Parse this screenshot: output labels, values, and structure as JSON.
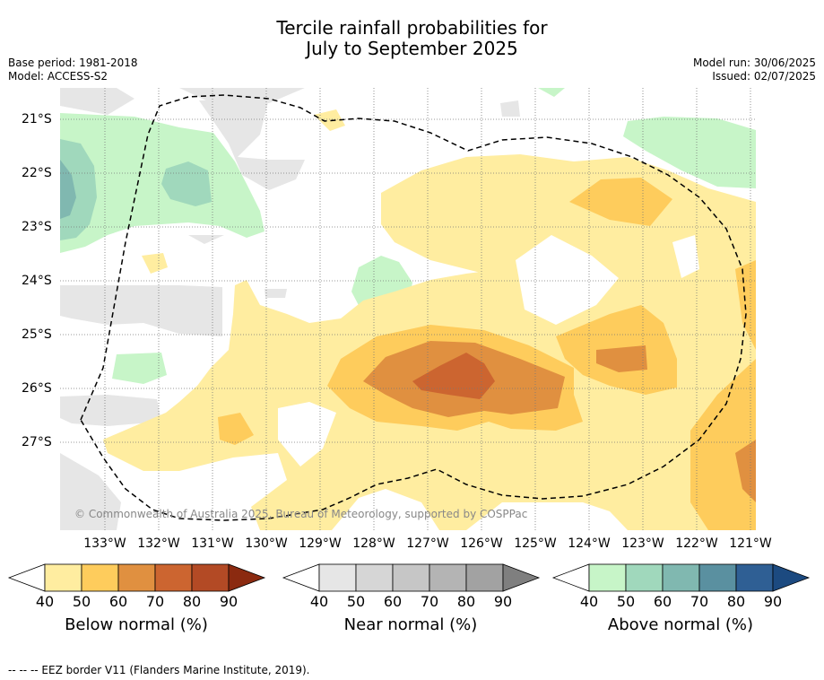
{
  "title": {
    "line1": "Tercile rainfall probabilities for",
    "line2": "July to September 2025"
  },
  "meta_left": {
    "base_period": "Base period: 1981-2018",
    "model": "Model: ACCESS-S2"
  },
  "meta_right": {
    "model_run": "Model run: 30/06/2025",
    "issued": "Issued: 02/07/2025"
  },
  "map": {
    "x_ticks": [
      "133°W",
      "132°W",
      "131°W",
      "130°W",
      "129°W",
      "128°W",
      "127°W",
      "126°W",
      "125°W",
      "124°W",
      "123°W",
      "122°W",
      "121°W"
    ],
    "y_ticks": [
      "21°S",
      "22°S",
      "23°S",
      "24°S",
      "25°S",
      "26°S",
      "27°S"
    ],
    "copyright": "© Commonwealth of Australia 2025, Bureau of Meteorology, supported by COSPPac"
  },
  "colorbars": [
    {
      "label": "Below normal (%)",
      "ticks": [
        "40",
        "50",
        "60",
        "70",
        "80",
        "90"
      ],
      "colors": [
        "#ffeda0",
        "#fecc5c",
        "#e09040",
        "#cc6530",
        "#b34a25",
        "#8b2a10"
      ]
    },
    {
      "label": "Near normal (%)",
      "ticks": [
        "40",
        "50",
        "60",
        "70",
        "80",
        "90"
      ],
      "colors": [
        "#e6e6e6",
        "#d6d6d6",
        "#c6c6c6",
        "#b4b4b4",
        "#a2a2a2",
        "#7f7f7f"
      ]
    },
    {
      "label": "Above normal (%)",
      "ticks": [
        "40",
        "50",
        "60",
        "70",
        "80",
        "90"
      ],
      "colors": [
        "#c7f5c8",
        "#a0d8bc",
        "#80b8b0",
        "#5a90a0",
        "#2f5f94",
        "#1c4a80"
      ]
    }
  ],
  "footnote": "--  --  -- EEZ border V11 (Flanders Marine Institute, 2019)."
}
